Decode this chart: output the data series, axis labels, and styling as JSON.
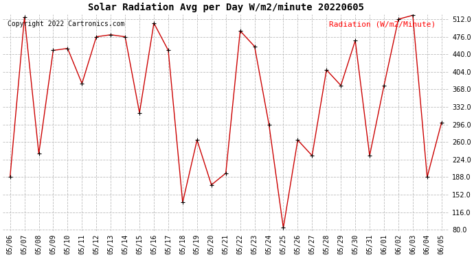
{
  "title": "Solar Radiation Avg per Day W/m2/minute 20220605",
  "copyright": "Copyright 2022 Cartronics.com",
  "legend_label": "Radiation (W/m2/Minute)",
  "dates": [
    "05/06",
    "05/07",
    "05/08",
    "05/09",
    "05/10",
    "05/11",
    "05/12",
    "05/13",
    "05/14",
    "05/15",
    "05/16",
    "05/17",
    "05/18",
    "05/19",
    "05/20",
    "05/21",
    "05/22",
    "05/23",
    "05/24",
    "05/25",
    "05/26",
    "05/27",
    "05/28",
    "05/29",
    "05/30",
    "05/31",
    "06/01",
    "06/02",
    "06/03",
    "06/04",
    "06/05"
  ],
  "values": [
    188,
    516,
    236,
    448,
    452,
    380,
    476,
    480,
    476,
    320,
    504,
    448,
    136,
    264,
    172,
    196,
    488,
    456,
    296,
    84,
    264,
    232,
    408,
    376,
    468,
    232,
    376,
    512,
    520,
    188,
    300
  ],
  "line_color": "#cc0000",
  "marker_color": "#000000",
  "grid_color": "#bbbbbb",
  "background_color": "#ffffff",
  "ylim": [
    80.0,
    512.0
  ],
  "yticks": [
    80.0,
    116.0,
    152.0,
    188.0,
    224.0,
    260.0,
    296.0,
    332.0,
    368.0,
    404.0,
    440.0,
    476.0,
    512.0
  ],
  "title_fontsize": 10,
  "legend_fontsize": 8,
  "copyright_fontsize": 7,
  "tick_fontsize": 7
}
